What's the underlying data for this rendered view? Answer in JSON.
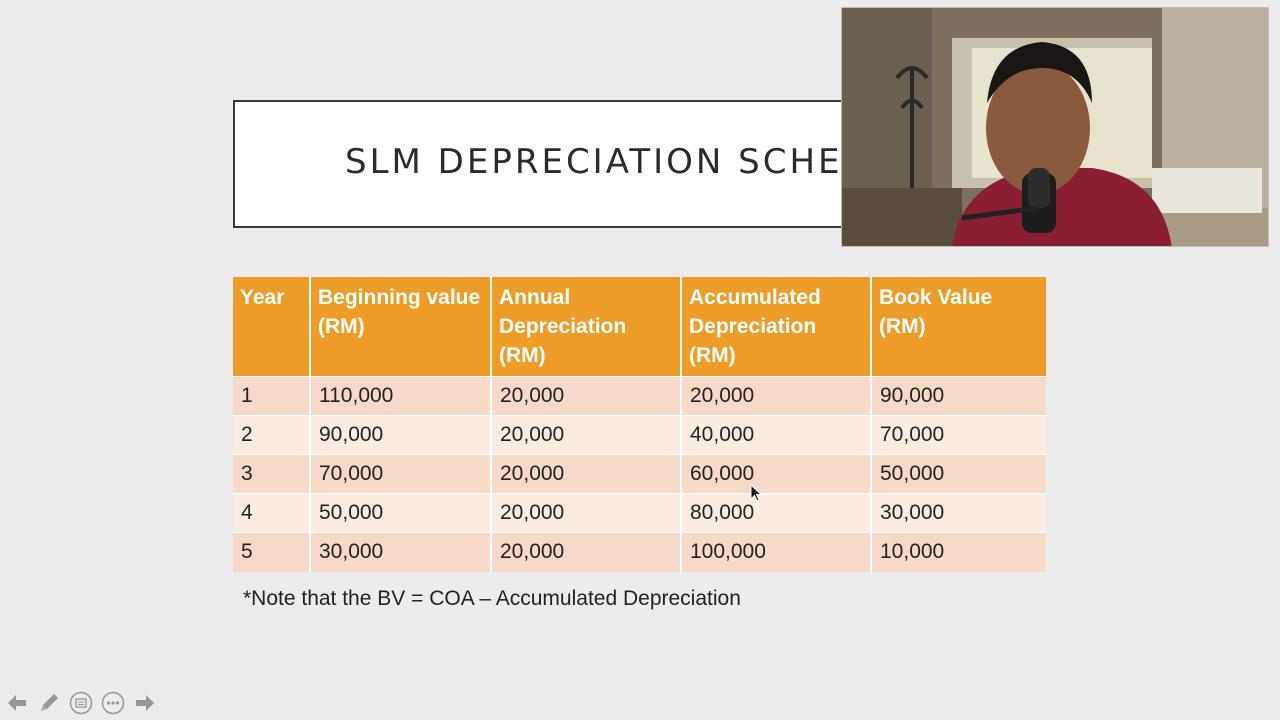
{
  "slide": {
    "title": "SLM DEPRECIATION SCHEDULE",
    "table": {
      "headers": [
        "Year",
        "Beginning value (RM)",
        "Annual Depreciation (RM)",
        "Accumulated Depreciation (RM)",
        "Book Value (RM)"
      ],
      "rows": [
        [
          "1",
          "110,000",
          "20,000",
          "20,000",
          "90,000"
        ],
        [
          "2",
          "90,000",
          "20,000",
          "40,000",
          "70,000"
        ],
        [
          "3",
          "70,000",
          "20,000",
          "60,000",
          "50,000"
        ],
        [
          "4",
          "50,000",
          "20,000",
          "80,000",
          "30,000"
        ],
        [
          "5",
          "30,000",
          "20,000",
          "100,000",
          "10,000"
        ]
      ]
    },
    "note": "*Note that the BV = COA – Accumulated Depreciation"
  },
  "colors": {
    "header_bg": "#ec9c27",
    "row_odd": "#f6d9c6",
    "row_even": "#fbece2"
  },
  "controls": [
    {
      "name": "previous-slide-button",
      "icon": "arrow-left-icon"
    },
    {
      "name": "pen-tool-button",
      "icon": "pencil-icon"
    },
    {
      "name": "slide-overview-button",
      "icon": "slides-icon"
    },
    {
      "name": "more-options-button",
      "icon": "ellipsis-icon"
    },
    {
      "name": "next-slide-button",
      "icon": "arrow-right-icon"
    }
  ]
}
